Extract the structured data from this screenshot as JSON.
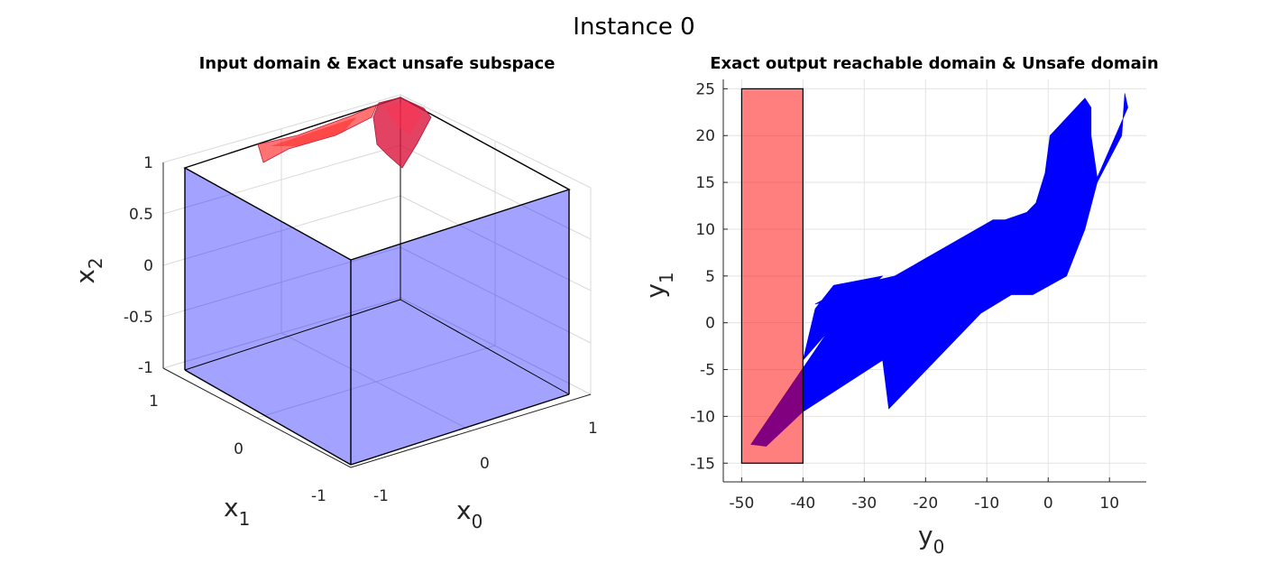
{
  "figure": {
    "title": "Instance 0"
  },
  "chart_data": [
    {
      "type": "3d-polytope",
      "title": "Input domain & Exact unsafe subspace",
      "xlabel": "x",
      "xlabel_sub": "0",
      "ylabel": "x",
      "ylabel_sub": "1",
      "zlabel": "x",
      "zlabel_sub": "2",
      "x_ticks": [
        "-1",
        "0",
        "1"
      ],
      "y_ticks": [
        "-1",
        "0",
        "1"
      ],
      "z_ticks": [
        "-1",
        "-0.5",
        "0",
        "0.5",
        "1"
      ],
      "xlim": [
        -1,
        1
      ],
      "ylim": [
        -1,
        1
      ],
      "zlim": [
        -1,
        1
      ],
      "series": [
        {
          "role": "input domain",
          "shape": "box",
          "min": [
            -1,
            -1,
            -1
          ],
          "max": [
            1,
            1,
            1
          ],
          "color": "#0000ff",
          "alpha": 0.35
        },
        {
          "role": "unsafe subspace",
          "shape": "polytopes",
          "color": "#ff0000",
          "location": "top face (x2 = 1)"
        }
      ],
      "grid": true
    },
    {
      "type": "area",
      "title": "Exact output reachable domain & Unsafe domain",
      "xlabel": "y",
      "xlabel_sub": "0",
      "ylabel": "y",
      "ylabel_sub": "1",
      "xlim": [
        -53,
        16
      ],
      "ylim": [
        -17,
        26
      ],
      "x_ticks": [
        -50,
        -40,
        -30,
        -20,
        -10,
        0,
        10
      ],
      "y_ticks": [
        -15,
        -10,
        -5,
        0,
        5,
        10,
        15,
        20,
        25
      ],
      "grid": true,
      "series": [
        {
          "role": "unsafe domain",
          "shape": "rectangle",
          "x_range": [
            -50,
            -40
          ],
          "y_range": [
            -15,
            25
          ],
          "color": "#ff0000",
          "alpha": 0.5
        },
        {
          "role": "reachable domain",
          "shape": "polygon",
          "color": "#0000ff",
          "points": [
            [
              -48.5,
              -13
            ],
            [
              -46,
              -13.2
            ],
            [
              -40,
              -9.5
            ],
            [
              -27,
              -4
            ],
            [
              -26,
              -9.2
            ],
            [
              -11,
              1
            ],
            [
              -6,
              3
            ],
            [
              -2.5,
              3
            ],
            [
              3,
              5
            ],
            [
              6,
              10
            ],
            [
              8,
              15
            ],
            [
              12,
              20
            ],
            [
              12.5,
              24.5
            ],
            [
              13,
              23
            ],
            [
              11,
              20
            ],
            [
              8,
              15.5
            ],
            [
              7,
              20
            ],
            [
              7,
              23
            ],
            [
              6,
              24
            ],
            [
              0.3,
              20
            ],
            [
              -0.5,
              16
            ],
            [
              -2,
              12.8
            ],
            [
              -3.5,
              11.8
            ],
            [
              -7,
              11
            ],
            [
              -9,
              11
            ],
            [
              -25,
              5
            ],
            [
              -33,
              3.8
            ],
            [
              -38,
              2
            ],
            [
              -30,
              3.2
            ],
            [
              -27,
              5
            ],
            [
              -35,
              4
            ],
            [
              -38,
              1.5
            ],
            [
              -40,
              -4
            ],
            [
              -36,
              -1
            ]
          ]
        }
      ]
    }
  ]
}
